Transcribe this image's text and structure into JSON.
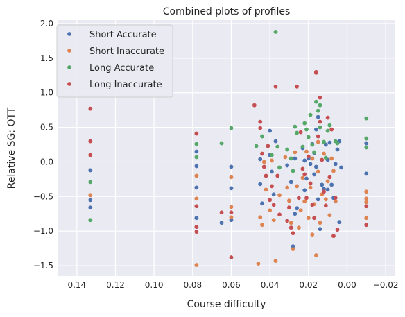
{
  "chart_data": {
    "type": "scatter",
    "title": "Combined plots of profiles",
    "xlabel": "Course difficulty",
    "ylabel": "Relative SG: OTT",
    "xlim": [
      0.15,
      -0.025
    ],
    "ylim": [
      -1.65,
      2.05
    ],
    "x_ticks": [
      0.14,
      0.12,
      0.1,
      0.08,
      0.06,
      0.04,
      0.02,
      0.0,
      -0.02
    ],
    "x_tick_labels": [
      "0.14",
      "0.12",
      "0.10",
      "0.08",
      "0.06",
      "0.04",
      "0.02",
      "0.00",
      "−0.02"
    ],
    "y_ticks": [
      -1.5,
      -1.0,
      -0.5,
      0.0,
      0.5,
      1.0,
      1.5,
      2.0
    ],
    "y_tick_labels": [
      "−1.5",
      "−1.0",
      "−0.5",
      "0.0",
      "0.5",
      "1.0",
      "1.5",
      "2.0"
    ],
    "grid": true,
    "legend_position": "top-left",
    "background": "#eaeaf2",
    "series": [
      {
        "name": "Short Accurate",
        "color": "#4c72b0",
        "points": [
          [
            0.133,
            -0.12
          ],
          [
            0.133,
            -0.55
          ],
          [
            0.133,
            -0.66
          ],
          [
            0.078,
            0.15
          ],
          [
            0.078,
            -0.06
          ],
          [
            0.078,
            -0.37
          ],
          [
            0.078,
            -0.81
          ],
          [
            0.065,
            -0.88
          ],
          [
            0.06,
            -0.07
          ],
          [
            0.06,
            -0.38
          ],
          [
            0.06,
            -0.84
          ],
          [
            0.045,
            0.04
          ],
          [
            0.045,
            -0.32
          ],
          [
            0.044,
            -0.6
          ],
          [
            0.04,
            0.45
          ],
          [
            0.04,
            0.1
          ],
          [
            0.039,
            -0.14
          ],
          [
            0.038,
            -0.47
          ],
          [
            0.037,
            0.3
          ],
          [
            0.031,
            -0.05
          ],
          [
            0.029,
            -0.29
          ],
          [
            0.028,
            -1.22
          ],
          [
            0.027,
            0.05
          ],
          [
            0.027,
            -0.75
          ],
          [
            0.026,
            -0.67
          ],
          [
            0.023,
            0.2
          ],
          [
            0.022,
            0.02
          ],
          [
            0.022,
            -0.41
          ],
          [
            0.021,
            -0.24
          ],
          [
            0.02,
            0.05
          ],
          [
            0.019,
            -0.03
          ],
          [
            0.018,
            0.26
          ],
          [
            0.017,
            -0.18
          ],
          [
            0.017,
            0.13
          ],
          [
            0.016,
            0.47
          ],
          [
            0.016,
            -0.07
          ],
          [
            0.015,
            0.65
          ],
          [
            0.015,
            -0.54
          ],
          [
            0.014,
            -0.97
          ],
          [
            0.013,
            -0.33
          ],
          [
            0.012,
            -0.39
          ],
          [
            0.011,
            0.25
          ],
          [
            0.01,
            0.03
          ],
          [
            0.01,
            -0.4
          ],
          [
            0.009,
            0.28
          ],
          [
            0.008,
            -0.33
          ],
          [
            0.007,
            -0.52
          ],
          [
            0.006,
            -0.03
          ],
          [
            0.005,
            0.18
          ],
          [
            0.004,
            -0.87
          ],
          [
            0.004,
            0.3
          ],
          [
            0.003,
            -0.08
          ],
          [
            -0.01,
            0.27
          ],
          [
            -0.01,
            -0.17
          ]
        ]
      },
      {
        "name": "Short Inaccurate",
        "color": "#dd8452",
        "points": [
          [
            0.133,
            -0.48
          ],
          [
            0.078,
            -0.53
          ],
          [
            0.078,
            -0.2
          ],
          [
            0.078,
            -1.49
          ],
          [
            0.06,
            -0.22
          ],
          [
            0.06,
            -0.65
          ],
          [
            0.06,
            -0.8
          ],
          [
            0.046,
            -1.47
          ],
          [
            0.045,
            -0.8
          ],
          [
            0.044,
            -0.91
          ],
          [
            0.043,
            0.0
          ],
          [
            0.042,
            -0.4
          ],
          [
            0.04,
            -0.7
          ],
          [
            0.039,
            0.02
          ],
          [
            0.038,
            -0.84
          ],
          [
            0.037,
            -1.43
          ],
          [
            0.035,
            -0.48
          ],
          [
            0.032,
            0.07
          ],
          [
            0.031,
            -0.37
          ],
          [
            0.03,
            -0.56
          ],
          [
            0.029,
            -0.88
          ],
          [
            0.028,
            -1.26
          ],
          [
            0.027,
            0.14
          ],
          [
            0.026,
            -0.35
          ],
          [
            0.025,
            -0.95
          ],
          [
            0.024,
            -0.7
          ],
          [
            0.023,
            -0.23
          ],
          [
            0.022,
            -0.57
          ],
          [
            0.021,
            0.15
          ],
          [
            0.02,
            -0.81
          ],
          [
            0.019,
            -0.37
          ],
          [
            0.018,
            0.05
          ],
          [
            0.018,
            -1.05
          ],
          [
            0.017,
            -0.61
          ],
          [
            0.016,
            -1.35
          ],
          [
            0.015,
            0.29
          ],
          [
            0.015,
            -0.14
          ],
          [
            0.014,
            -0.88
          ],
          [
            0.013,
            -0.47
          ],
          [
            0.012,
            0.12
          ],
          [
            0.011,
            -0.54
          ],
          [
            0.01,
            -0.28
          ],
          [
            0.009,
            -0.77
          ],
          [
            0.008,
            0.05
          ],
          [
            0.007,
            -0.13
          ],
          [
            0.006,
            -0.57
          ],
          [
            -0.01,
            -0.43
          ],
          [
            -0.01,
            -0.53
          ],
          [
            -0.01,
            -0.81
          ],
          [
            -0.01,
            -0.58
          ]
        ]
      },
      {
        "name": "Long Accurate",
        "color": "#55a868",
        "points": [
          [
            0.133,
            -0.29
          ],
          [
            0.133,
            -0.84
          ],
          [
            0.078,
            0.26
          ],
          [
            0.078,
            0.07
          ],
          [
            0.065,
            0.27
          ],
          [
            0.06,
            0.49
          ],
          [
            0.047,
            0.23
          ],
          [
            0.044,
            0.37
          ],
          [
            0.041,
            0.23
          ],
          [
            0.039,
            0.1
          ],
          [
            0.037,
            1.88
          ],
          [
            0.036,
            0.22
          ],
          [
            0.035,
            -0.08
          ],
          [
            0.031,
            0.18
          ],
          [
            0.029,
            0.05
          ],
          [
            0.028,
            -0.13
          ],
          [
            0.027,
            0.51
          ],
          [
            0.026,
            0.42
          ],
          [
            0.023,
            0.22
          ],
          [
            0.022,
            0.56
          ],
          [
            0.021,
            0.47
          ],
          [
            0.02,
            0.36
          ],
          [
            0.019,
            0.68
          ],
          [
            0.018,
            0.25
          ],
          [
            0.017,
            0.14
          ],
          [
            0.016,
            0.87
          ],
          [
            0.015,
            0.74
          ],
          [
            0.014,
            0.82
          ],
          [
            0.014,
            0.5
          ],
          [
            0.012,
            0.29
          ],
          [
            0.011,
            0.06
          ],
          [
            0.01,
            0.45
          ],
          [
            0.009,
            0.53
          ],
          [
            0.006,
            0.3
          ],
          [
            0.005,
            0.27
          ],
          [
            -0.01,
            0.63
          ],
          [
            -0.01,
            0.34
          ],
          [
            -0.01,
            0.21
          ]
        ]
      },
      {
        "name": "Long Inaccurate",
        "color": "#c44e52",
        "points": [
          [
            0.133,
            0.77
          ],
          [
            0.133,
            0.3
          ],
          [
            0.133,
            0.1
          ],
          [
            0.078,
            0.41
          ],
          [
            0.078,
            -0.64
          ],
          [
            0.078,
            -0.94
          ],
          [
            0.078,
            -1.01
          ],
          [
            0.065,
            -0.73
          ],
          [
            0.06,
            -0.73
          ],
          [
            0.06,
            -1.38
          ],
          [
            0.048,
            0.82
          ],
          [
            0.045,
            0.58
          ],
          [
            0.045,
            0.49
          ],
          [
            0.044,
            0.12
          ],
          [
            0.043,
            -0.07
          ],
          [
            0.042,
            -0.2
          ],
          [
            0.041,
            0.23
          ],
          [
            0.04,
            -0.55
          ],
          [
            0.039,
            -0.35
          ],
          [
            0.038,
            -0.62
          ],
          [
            0.037,
            1.09
          ],
          [
            0.036,
            -0.2
          ],
          [
            0.035,
            -0.76
          ],
          [
            0.031,
            -0.85
          ],
          [
            0.03,
            -0.66
          ],
          [
            0.029,
            -0.95
          ],
          [
            0.028,
            -1.03
          ],
          [
            0.026,
            1.09
          ],
          [
            0.025,
            -0.52
          ],
          [
            0.024,
            0.43
          ],
          [
            0.023,
            -0.1
          ],
          [
            0.022,
            -0.18
          ],
          [
            0.021,
            -0.52
          ],
          [
            0.02,
            0.08
          ],
          [
            0.019,
            -0.31
          ],
          [
            0.018,
            -0.62
          ],
          [
            0.017,
            -0.81
          ],
          [
            0.016,
            1.29
          ],
          [
            0.016,
            1.3
          ],
          [
            0.015,
            0.37
          ],
          [
            0.014,
            0.93
          ],
          [
            0.014,
            0.58
          ],
          [
            0.013,
            0.03
          ],
          [
            0.012,
            -0.43
          ],
          [
            0.011,
            -0.63
          ],
          [
            0.01,
            0.64
          ],
          [
            0.009,
            -0.22
          ],
          [
            0.008,
            0.47
          ],
          [
            0.007,
            -1.07
          ],
          [
            0.006,
            -0.52
          ],
          [
            0.005,
            -0.98
          ],
          [
            -0.01,
            -0.91
          ],
          [
            -0.01,
            -0.64
          ]
        ]
      }
    ]
  }
}
